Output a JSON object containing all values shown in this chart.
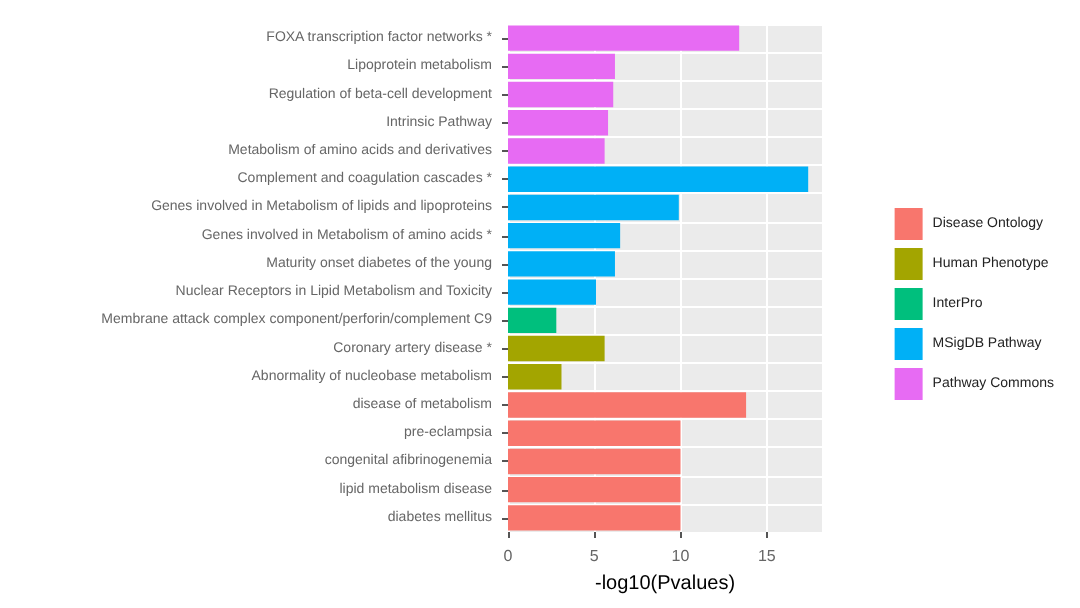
{
  "chart_data": {
    "type": "bar",
    "orientation": "horizontal",
    "stacked": true,
    "categories": [
      "FOXA transcription factor networks *",
      "Lipoprotein metabolism",
      "Regulation of beta-cell development",
      "Intrinsic Pathway",
      "Metabolism of amino acids and derivatives",
      "Complement and coagulation cascades *",
      "Genes involved in Metabolism of lipids and lipoproteins",
      "Genes involved in Metabolism of amino acids *",
      "Maturity onset diabetes of the young",
      "Nuclear Receptors in Lipid Metabolism and Toxicity",
      "Membrane attack complex component/perforin/complement C9",
      "Coronary artery disease *",
      "Abnormality of nucleobase metabolism",
      "disease of metabolism",
      "pre-eclampsia",
      "congenital afibrinogenemia",
      "lipid metabolism disease",
      "diabetes mellitus"
    ],
    "series": [
      {
        "name": "Disease Ontology",
        "color": "#f8766d",
        "values": [
          null,
          null,
          null,
          null,
          null,
          null,
          null,
          null,
          null,
          null,
          null,
          null,
          null,
          13.8,
          10.0,
          10.0,
          10.0,
          10.0
        ]
      },
      {
        "name": "Human Phenotype",
        "color": "#a3a500",
        "values": [
          null,
          null,
          null,
          null,
          null,
          null,
          null,
          null,
          null,
          null,
          null,
          5.6,
          3.1,
          null,
          null,
          null,
          null,
          null
        ]
      },
      {
        "name": "InterPro",
        "color": "#00bf7d",
        "values": [
          null,
          null,
          null,
          null,
          null,
          null,
          null,
          null,
          null,
          null,
          2.8,
          null,
          null,
          null,
          null,
          null,
          null,
          null
        ]
      },
      {
        "name": "MSigDB Pathway",
        "color": "#00b0f6",
        "values": [
          null,
          null,
          null,
          null,
          null,
          17.4,
          9.9,
          6.5,
          6.2,
          5.1,
          null,
          null,
          null,
          null,
          null,
          null,
          null,
          null
        ]
      },
      {
        "name": "Pathway Commons",
        "color": "#e76bf3",
        "values": [
          13.4,
          6.2,
          6.1,
          5.8,
          5.6,
          null,
          null,
          null,
          null,
          null,
          null,
          null,
          null,
          null,
          null,
          null,
          null,
          null
        ]
      }
    ],
    "xlabel": "-log10(Pvalues)",
    "xlim": [
      0,
      18.2
    ],
    "xticks": [
      0,
      5,
      10,
      15
    ],
    "grid": true,
    "legend": "right"
  }
}
